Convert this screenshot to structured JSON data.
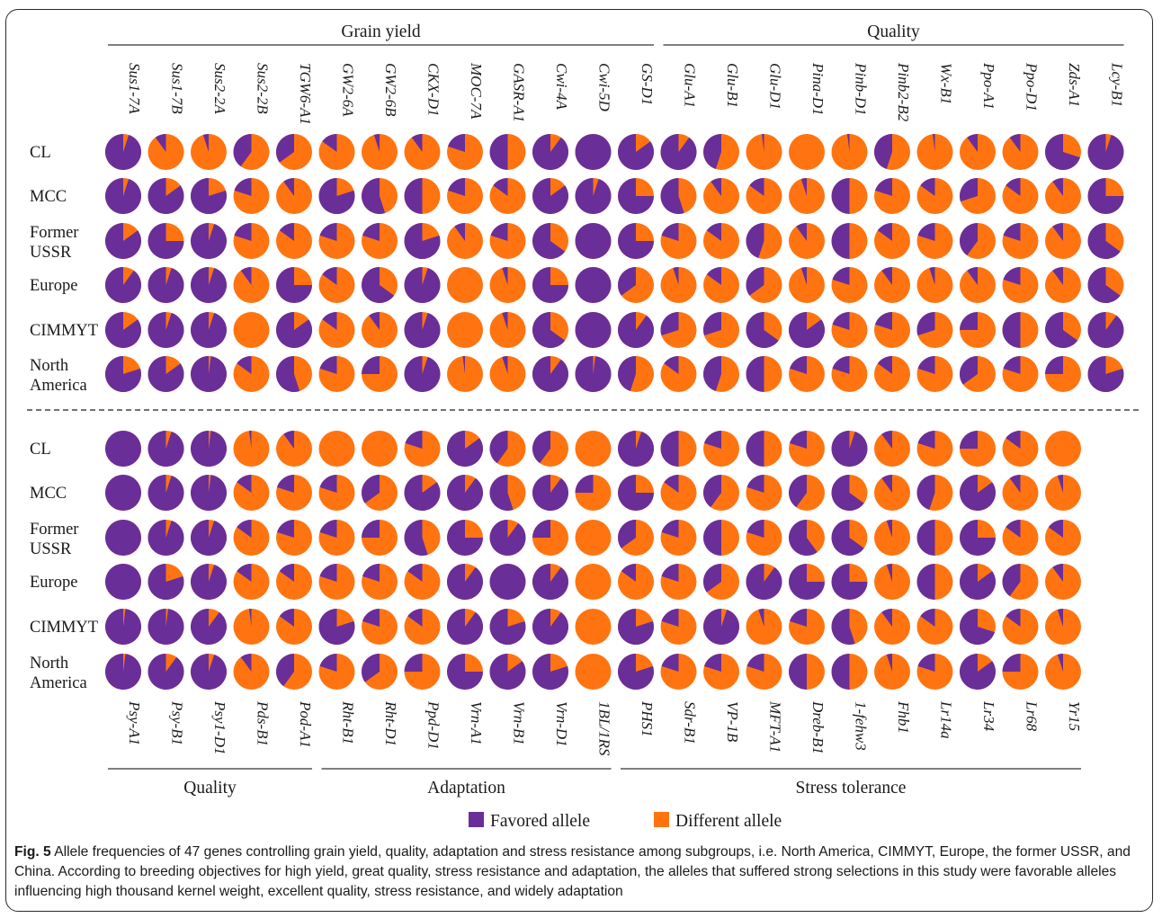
{
  "colors": {
    "favored": "#6a2e99",
    "different": "#ff7410",
    "text": "#1a1a1a",
    "line": "#333333"
  },
  "chart_data": {
    "type": "pie-matrix",
    "subgroups": [
      "CL",
      "MCC",
      "Former USSR",
      "Europe",
      "CIMMYT",
      "North America"
    ],
    "legend": {
      "favored": "Favored allele",
      "different": "Different allele"
    },
    "panels": [
      {
        "genes": [
          "Sus1-7A",
          "Sus1-7B",
          "Sus2-2A",
          "Sus2-2B",
          "TGW6-A1",
          "GW2-6A",
          "GW2-6B",
          "CKX-D1",
          "MOC-7A",
          "GASR-A1",
          "Cwi-4A",
          "Cwi-5D",
          "GS-D1",
          "Glu-A1",
          "Glu-B1",
          "Glu-D1",
          "Pina-D1",
          "Pinb-D1",
          "Pinb2-B2",
          "Wx-B1",
          "Ppo-A1",
          "Ppo-D1",
          "Zds-A1",
          "Lcy-B1"
        ],
        "groups": [
          {
            "label": "Grain yield",
            "start": 0,
            "end": 12,
            "position": "top"
          },
          {
            "label": "Quality",
            "start": 13,
            "end": 23,
            "position": "top"
          }
        ],
        "favored_fraction": [
          [
            0.95,
            0.1,
            0.05,
            0.4,
            0.35,
            0.15,
            0.05,
            0.1,
            0.2,
            0.5,
            0.9,
            1.0,
            0.85,
            0.9,
            0.45,
            0.02,
            0.0,
            0.02,
            0.45,
            0.02,
            0.1,
            0.1,
            0.7,
            0.95
          ],
          [
            0.95,
            0.85,
            0.8,
            0.2,
            0.1,
            0.8,
            0.55,
            0.5,
            0.2,
            0.15,
            0.85,
            0.95,
            0.75,
            0.55,
            0.1,
            0.15,
            0.05,
            0.5,
            0.2,
            0.15,
            0.3,
            0.15,
            0.1,
            0.75
          ],
          [
            0.85,
            0.75,
            0.95,
            0.2,
            0.15,
            0.2,
            0.2,
            0.8,
            0.1,
            0.2,
            0.65,
            1.0,
            0.75,
            0.2,
            0.15,
            0.45,
            0.1,
            0.5,
            0.15,
            0.2,
            0.4,
            0.2,
            0.1,
            0.65
          ],
          [
            0.9,
            0.95,
            0.95,
            0.1,
            0.75,
            0.15,
            0.65,
            0.95,
            0.0,
            0.05,
            0.75,
            1.0,
            0.35,
            0.05,
            0.15,
            0.35,
            0.05,
            0.2,
            0.1,
            0.05,
            0.1,
            0.2,
            0.1,
            0.65
          ],
          [
            0.85,
            0.95,
            0.95,
            0.0,
            0.85,
            0.15,
            0.1,
            0.95,
            0.0,
            0.05,
            0.65,
            1.0,
            0.9,
            0.3,
            0.3,
            0.65,
            0.85,
            0.2,
            0.2,
            0.3,
            0.25,
            0.5,
            0.65,
            0.9
          ],
          [
            0.8,
            0.85,
            0.98,
            0.15,
            0.55,
            0.2,
            0.25,
            0.95,
            0.02,
            0.05,
            0.9,
            0.98,
            0.45,
            0.15,
            0.45,
            0.5,
            0.2,
            0.2,
            0.15,
            0.2,
            0.35,
            0.2,
            0.25,
            0.8
          ]
        ]
      },
      {
        "genes": [
          "Psy-A1",
          "Psy-B1",
          "Psy1-D1",
          "Pds-B1",
          "Pod-A1",
          "Rht-B1",
          "Rht-D1",
          "Ppd-D1",
          "Vrn-A1",
          "Vrn-B1",
          "Vrn-D1",
          "1BL/1RS",
          "PHS1",
          "Sdr-B1",
          "VP-1B",
          "MFT-A1",
          "Dreb-B1",
          "1-fehw3",
          "Fhb1",
          "Lr14a",
          "Lr34",
          "Lr68",
          "Yr15"
        ],
        "groups": [
          {
            "label": "Quality",
            "start": 0,
            "end": 4,
            "position": "bottom"
          },
          {
            "label": "Adaptation",
            "start": 5,
            "end": 11,
            "position": "bottom"
          },
          {
            "label": "Stress tolerance",
            "start": 12,
            "end": 22,
            "position": "bottom"
          }
        ],
        "favored_fraction": [
          [
            1.0,
            0.95,
            0.98,
            0.02,
            0.1,
            0.0,
            0.0,
            0.2,
            0.85,
            0.4,
            0.4,
            0.0,
            0.95,
            0.5,
            0.2,
            0.5,
            0.2,
            0.95,
            0.1,
            0.2,
            0.25,
            0.15,
            0.0
          ],
          [
            1.0,
            0.95,
            0.98,
            0.15,
            0.2,
            0.2,
            0.35,
            0.85,
            0.9,
            0.55,
            0.9,
            0.25,
            0.75,
            0.15,
            0.4,
            0.2,
            0.4,
            0.65,
            0.1,
            0.45,
            0.85,
            0.1,
            0.05
          ],
          [
            1.0,
            0.95,
            0.95,
            0.15,
            0.2,
            0.2,
            0.25,
            0.55,
            0.75,
            0.9,
            0.25,
            0.0,
            0.35,
            0.2,
            0.5,
            0.2,
            0.6,
            0.65,
            0.05,
            0.5,
            0.75,
            0.15,
            0.15
          ],
          [
            1.0,
            0.8,
            0.95,
            0.15,
            0.15,
            0.2,
            0.2,
            0.15,
            0.9,
            1.0,
            0.9,
            0.0,
            0.15,
            0.2,
            0.35,
            0.9,
            0.75,
            0.75,
            0.05,
            0.5,
            0.85,
            0.4,
            0.1
          ],
          [
            0.98,
            0.98,
            0.9,
            0.02,
            0.15,
            0.8,
            0.2,
            0.15,
            0.9,
            0.8,
            0.9,
            0.0,
            0.8,
            0.2,
            0.95,
            0.05,
            0.2,
            0.55,
            0.1,
            0.15,
            0.7,
            0.15,
            0.05
          ],
          [
            0.98,
            0.9,
            0.95,
            0.1,
            0.4,
            0.2,
            0.35,
            0.25,
            0.75,
            0.85,
            0.8,
            0.0,
            0.8,
            0.2,
            0.2,
            0.2,
            0.5,
            0.5,
            0.05,
            0.2,
            0.85,
            0.25,
            0.05
          ]
        ]
      }
    ]
  },
  "caption": {
    "label": "Fig. 5",
    "text": " Allele frequencies of 47 genes controlling grain yield, quality, adaptation and stress resistance among subgroups, i.e. North America, CIMMYT, Europe, the former USSR, and China. According to breeding objectives for high yield, great quality, stress resistance and adaptation, the alleles that suffered strong selections in this study were favorable alleles influencing high thousand kernel weight, excellent quality, stress resistance, and widely adaptation"
  }
}
